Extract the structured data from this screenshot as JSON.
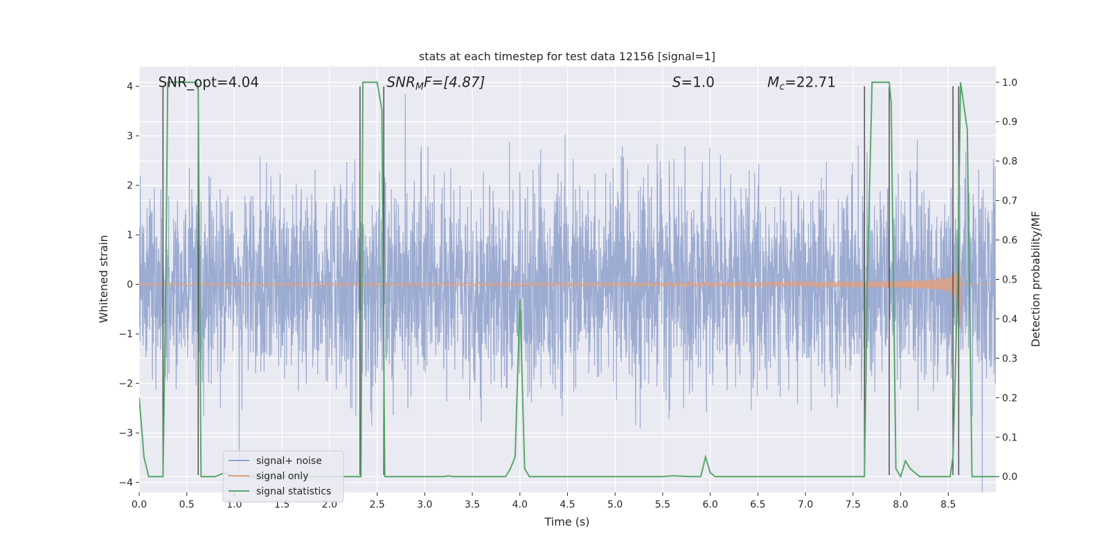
{
  "chart_data": {
    "type": "line",
    "title": "stats at each timestep for test data 12156 [signal=1]",
    "xlabel": "Time (s)",
    "ylabel": "Whitened strain",
    "y2label": "Detection probability/MF",
    "xlim": [
      0,
      9.0
    ],
    "ylim": [
      -4.2,
      4.4
    ],
    "y2lim": [
      -0.04,
      1.04
    ],
    "xticks": [
      0.0,
      0.5,
      1.0,
      1.5,
      2.0,
      2.5,
      3.0,
      3.5,
      4.0,
      4.5,
      5.0,
      5.5,
      6.0,
      6.5,
      7.0,
      7.5,
      8.0,
      8.5
    ],
    "xtick_labels": [
      "0.0",
      "0.5",
      "1.0",
      "1.5",
      "2.0",
      "2.5",
      "3.0",
      "3.5",
      "4.0",
      "4.5",
      "5.0",
      "5.5",
      "6.0",
      "6.5",
      "7.0",
      "7.5",
      "8.0",
      "8.5"
    ],
    "yticks": [
      -4,
      -3,
      -2,
      -1,
      0,
      1,
      2,
      3,
      4
    ],
    "ytick_labels": [
      "−4",
      "−3",
      "−2",
      "−1",
      "0",
      "1",
      "2",
      "3",
      "4"
    ],
    "y2ticks": [
      0.0,
      0.1,
      0.2,
      0.3,
      0.4,
      0.5,
      0.6,
      0.7,
      0.8,
      0.9,
      1.0
    ],
    "y2tick_labels": [
      "0.0",
      "0.1",
      "0.2",
      "0.3",
      "0.4",
      "0.5",
      "0.6",
      "0.7",
      "0.8",
      "0.9",
      "1.0"
    ],
    "annotations": [
      {
        "x": 0.2,
        "y": 4.0,
        "pre": "SNR_opt=4.04",
        "sub": "",
        "post": "",
        "italic": false
      },
      {
        "x": 2.6,
        "y": 4.0,
        "pre": "SNR",
        "sub": "M",
        "post": "F=[4.87]",
        "italic": true
      },
      {
        "x": 5.6,
        "y": 4.0,
        "pre": "S",
        "sub": "",
        "post": "=1.0",
        "italic": true
      },
      {
        "x": 6.6,
        "y": 4.0,
        "pre": "M",
        "sub": "c",
        "post": "=22.71",
        "italic": true
      }
    ],
    "vlines": [
      {
        "x": 0.25,
        "ymin": -3.85,
        "ymax": 4.0
      },
      {
        "x": 0.62,
        "ymin": -3.85,
        "ymax": 4.0
      },
      {
        "x": 2.32,
        "ymin": -3.85,
        "ymax": 4.0
      },
      {
        "x": 2.57,
        "ymin": -3.85,
        "ymax": 4.0
      },
      {
        "x": 7.62,
        "ymin": -3.85,
        "ymax": 4.0
      },
      {
        "x": 7.88,
        "ymin": -3.85,
        "ymax": 4.0
      },
      {
        "x": 8.55,
        "ymin": -3.85,
        "ymax": 4.0
      },
      {
        "x": 8.61,
        "ymin": -3.85,
        "ymax": 4.0
      }
    ],
    "series": [
      {
        "name": "signal+ noise",
        "color": "#8da0cb",
        "kind": "noise",
        "sigma": 1.0,
        "peak_max": 4.2
      },
      {
        "name": "signal only",
        "color": "#e3a07e",
        "kind": "chirp",
        "amp_start": 0.02,
        "amp_end": 1.15,
        "t_merge": 8.62
      },
      {
        "name": "signal statistics",
        "color": "#55a868",
        "axis": "y2",
        "x": [
          0.0,
          0.05,
          0.1,
          0.15,
          0.22,
          0.25,
          0.28,
          0.3,
          0.35,
          0.45,
          0.55,
          0.6,
          0.62,
          0.65,
          0.7,
          0.8,
          0.9,
          1.0,
          1.2,
          1.5,
          1.8,
          2.0,
          2.2,
          2.3,
          2.33,
          2.35,
          2.45,
          2.5,
          2.55,
          2.58,
          2.6,
          2.8,
          3.0,
          3.2,
          3.25,
          3.3,
          3.5,
          3.7,
          3.85,
          3.9,
          3.95,
          4.0,
          4.05,
          4.1,
          4.5,
          5.0,
          5.5,
          5.6,
          5.8,
          5.9,
          5.95,
          6.0,
          6.05,
          6.3,
          6.8,
          7.2,
          7.5,
          7.6,
          7.62,
          7.65,
          7.7,
          7.88,
          7.9,
          7.95,
          8.0,
          8.05,
          8.1,
          8.2,
          8.4,
          8.52,
          8.55,
          8.6,
          8.63,
          8.7,
          8.75,
          8.8,
          9.0
        ],
        "y": [
          0.2,
          0.05,
          0.0,
          0.0,
          0.0,
          0.0,
          0.5,
          1.0,
          1.0,
          1.0,
          1.0,
          1.0,
          0.98,
          0.0,
          0.0,
          0.0,
          0.01,
          0.0,
          0.0,
          0.0,
          0.0,
          0.0,
          0.0,
          0.0,
          0.0,
          1.0,
          1.0,
          1.0,
          0.93,
          0.0,
          0.0,
          0.0,
          0.0,
          0.0,
          0.002,
          0.0,
          0.0,
          0.0,
          0.0,
          0.02,
          0.05,
          0.45,
          0.02,
          0.0,
          0.0,
          0.0,
          0.0,
          0.002,
          0.0,
          0.0,
          0.05,
          0.01,
          0.0,
          0.0,
          0.0,
          0.0,
          0.0,
          0.0,
          0.0,
          0.5,
          1.0,
          1.0,
          0.95,
          0.02,
          0.0,
          0.04,
          0.02,
          0.0,
          0.0,
          0.0,
          0.05,
          0.5,
          1.0,
          0.88,
          0.0,
          0.0,
          0.0
        ]
      }
    ],
    "legend_placement": "lower-left",
    "grid": true
  }
}
